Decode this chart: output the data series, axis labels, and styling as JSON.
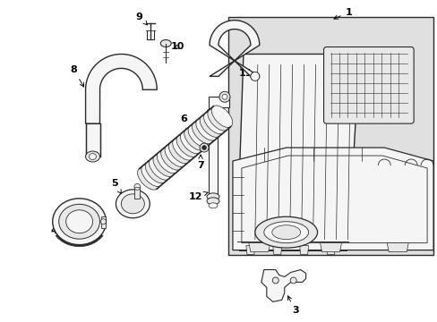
{
  "bg_color": "#ffffff",
  "line_color": "#2a2a2a",
  "box_bg": "#e0e0e0",
  "fill_light": "#f5f5f5",
  "fill_mid": "#e8e8e8",
  "label_color": "#000000"
}
